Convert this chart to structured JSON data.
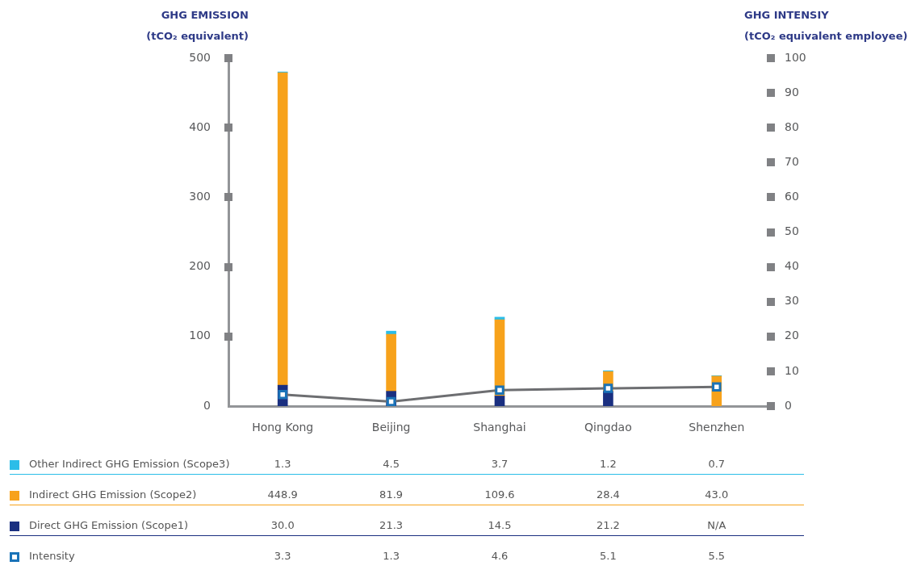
{
  "chart_data": {
    "type": "bar",
    "stacked": true,
    "ylabel": "GHG EMISSION (tCO₂ equivalent)",
    "y2label": "GHG INTENSIY (tCO₂ equivalent employee)",
    "categories": [
      "Hong Kong",
      "Beijing",
      "Shanghai",
      "Qingdao",
      "Shenzhen"
    ],
    "series": [
      {
        "name": "Direct GHG Emission (Scope1)",
        "color": "#1a2f80",
        "values": [
          30.0,
          21.3,
          14.5,
          21.2,
          null
        ],
        "value_labels": [
          "30.0",
          "21.3",
          "14.5",
          "21.2",
          "N/A"
        ]
      },
      {
        "name": "Indirect GHG Emission (Scope2)",
        "color": "#f7a21b",
        "values": [
          448.9,
          81.9,
          109.6,
          28.4,
          43.0
        ],
        "value_labels": [
          "448.9",
          "81.9",
          "109.6",
          "28.4",
          "43.0"
        ]
      },
      {
        "name": "Other Indirect GHG Emission (Scope3)",
        "color": "#2bbde8",
        "values": [
          1.3,
          4.5,
          3.7,
          1.2,
          0.7
        ],
        "value_labels": [
          "1.3",
          "4.5",
          "3.7",
          "1.2",
          "0.7"
        ]
      },
      {
        "name": "Intensity",
        "type": "line",
        "axis": "y2",
        "marker": "square",
        "color": "#1a73b8",
        "values": [
          3.3,
          1.3,
          4.6,
          5.1,
          5.5
        ],
        "value_labels": [
          "3.3",
          "1.3",
          "4.6",
          "5.1",
          "5.5"
        ]
      }
    ],
    "ylim": [
      0,
      500
    ],
    "yticks": [
      0,
      100,
      200,
      300,
      400,
      500
    ],
    "y2lim": [
      0,
      100
    ],
    "y2ticks": [
      0,
      10,
      20,
      30,
      40,
      50,
      60,
      70,
      80,
      90,
      100
    ],
    "grid": false,
    "legend": "bottom"
  }
}
